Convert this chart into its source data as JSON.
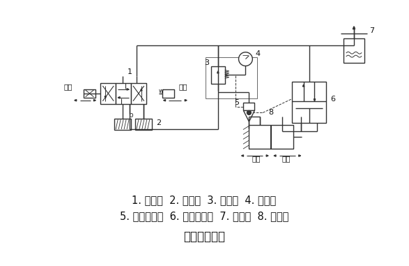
{
  "title": "夹具系统回路",
  "line1": "1. 换向阀  2. 消声器  3. 减压阀  4. 压力表",
  "line2": "5. 快速放气阀  6. 气液增压器  7. 储油器  8. 液压缸",
  "bg_color": "#ffffff",
  "text_color": "#111111",
  "line_color": "#333333",
  "font_size_text": 10.5,
  "font_size_title": 12
}
